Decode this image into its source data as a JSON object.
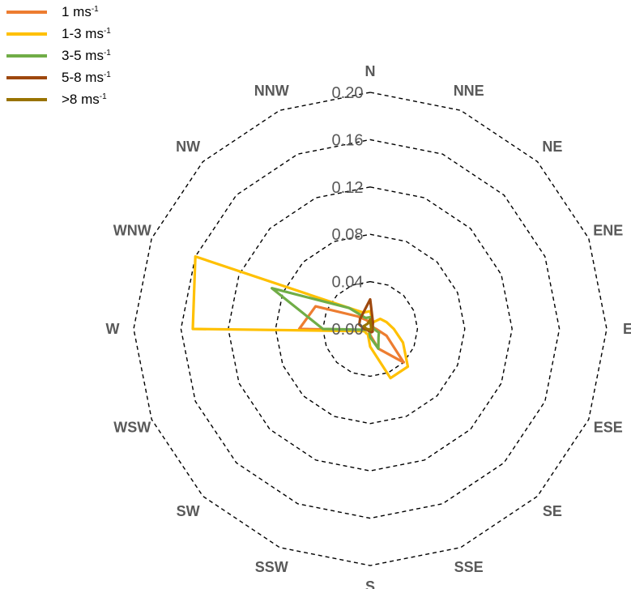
{
  "chart_data": {
    "type": "radar",
    "directions": [
      "N",
      "NNE",
      "NE",
      "ENE",
      "E",
      "ESE",
      "SE",
      "SSE",
      "S",
      "SSW",
      "SW",
      "WSW",
      "W",
      "WNW",
      "NW",
      "NNW"
    ],
    "rlim": [
      0,
      0.2
    ],
    "ticks": [
      "0.00",
      "0.04",
      "0.08",
      "0.12",
      "0.16",
      "0.20"
    ],
    "tick_values": [
      0,
      0.04,
      0.08,
      0.12,
      0.16,
      0.2
    ],
    "grid": true,
    "legend_position": "top-left",
    "series": [
      {
        "name": "1 ms",
        "sup": "-1",
        "color": "#ED7D31",
        "values": [
          0.005,
          0.003,
          0.002,
          0.003,
          0.005,
          0.015,
          0.04,
          0.018,
          0.005,
          0.002,
          0.002,
          0.003,
          0.06,
          0.05,
          0.015,
          0.008
        ]
      },
      {
        "name": "1-3 ms",
        "sup": "-1",
        "color": "#FFC000",
        "values": [
          0.015,
          0.006,
          0.012,
          0.015,
          0.02,
          0.03,
          0.045,
          0.045,
          0.015,
          0.005,
          0.005,
          0.005,
          0.15,
          0.16,
          0.025,
          0.015
        ]
      },
      {
        "name": "3-5 ms",
        "sup": "-1",
        "color": "#70AD47",
        "values": [
          0.01,
          0.002,
          0.003,
          0.003,
          0.003,
          0.008,
          0.01,
          0.018,
          0.007,
          0.002,
          0.002,
          0.002,
          0.04,
          0.09,
          0.025,
          0.01
        ]
      },
      {
        "name": "5-8 ms",
        "sup": "-1",
        "color": "#9E480E",
        "values": [
          0.025,
          0.006,
          0.003,
          0.002,
          0.002,
          0.002,
          0.003,
          0.003,
          0.002,
          0.002,
          0.002,
          0.002,
          0.005,
          0.01,
          0.012,
          0.015
        ]
      },
      {
        "name": ">8 ms",
        "sup": "-1",
        "color": "#997300",
        "values": [
          0.008,
          0.002,
          0.001,
          0.001,
          0.001,
          0.001,
          0.001,
          0.001,
          0.001,
          0.001,
          0.001,
          0.001,
          0.003,
          0.006,
          0.005,
          0.005
        ]
      }
    ]
  }
}
